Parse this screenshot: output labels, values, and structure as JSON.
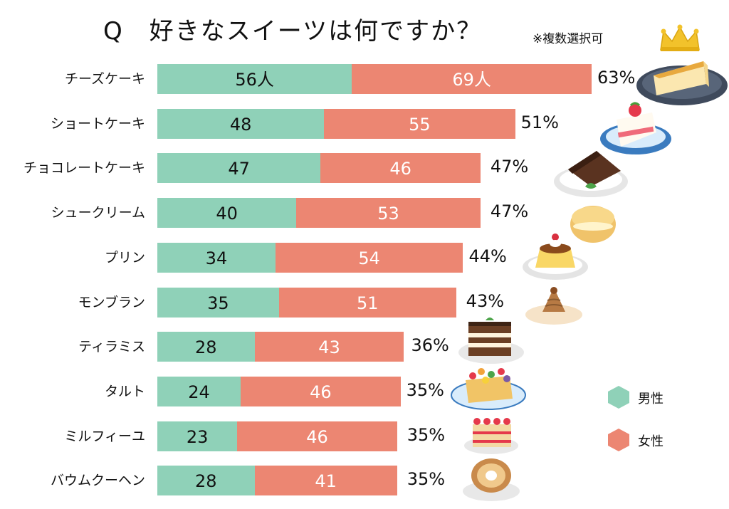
{
  "title": "Q　好きなスイーツは何ですか？",
  "note": "※複数選択可",
  "chart_data": {
    "type": "bar",
    "orientation": "horizontal",
    "stacked": true,
    "title": "Q　好きなスイーツは何ですか？",
    "note": "※複数選択可",
    "categories": [
      "チーズケーキ",
      "ショートケーキ",
      "チョコレートケーキ",
      "シュークリーム",
      "プリン",
      "モンブラン",
      "ティラミス",
      "タルト",
      "ミルフィーユ",
      "バウムクーヘン"
    ],
    "series": [
      {
        "name": "男性",
        "color": "#8fd1b8",
        "values": [
          56,
          48,
          47,
          40,
          34,
          35,
          28,
          24,
          23,
          28
        ],
        "labels": [
          "56人",
          "48",
          "47",
          "40",
          "34",
          "35",
          "28",
          "24",
          "23",
          "28"
        ]
      },
      {
        "name": "女性",
        "color": "#ec8672",
        "values": [
          69,
          55,
          46,
          53,
          54,
          51,
          43,
          46,
          46,
          41
        ],
        "labels": [
          "69人",
          "55",
          "46",
          "53",
          "54",
          "51",
          "43",
          "46",
          "46",
          "41"
        ]
      }
    ],
    "percent_labels": [
      "63%",
      "51%",
      "47%",
      "47%",
      "44%",
      "43%",
      "36%",
      "35%",
      "35%",
      "35%"
    ],
    "legend": [
      {
        "name": "男性",
        "color": "#8fd1b8"
      },
      {
        "name": "女性",
        "color": "#ec8672"
      }
    ],
    "legend_position": "right",
    "xlim": [
      0,
      130
    ],
    "grid": false
  },
  "illustrations": [
    "crown-icon",
    "cheesecake",
    "shortcake",
    "chocolate-cake",
    "cream-puff",
    "pudding",
    "mont-blanc",
    "tiramisu",
    "fruit-tart",
    "mille-feuille",
    "baumkuchen"
  ]
}
